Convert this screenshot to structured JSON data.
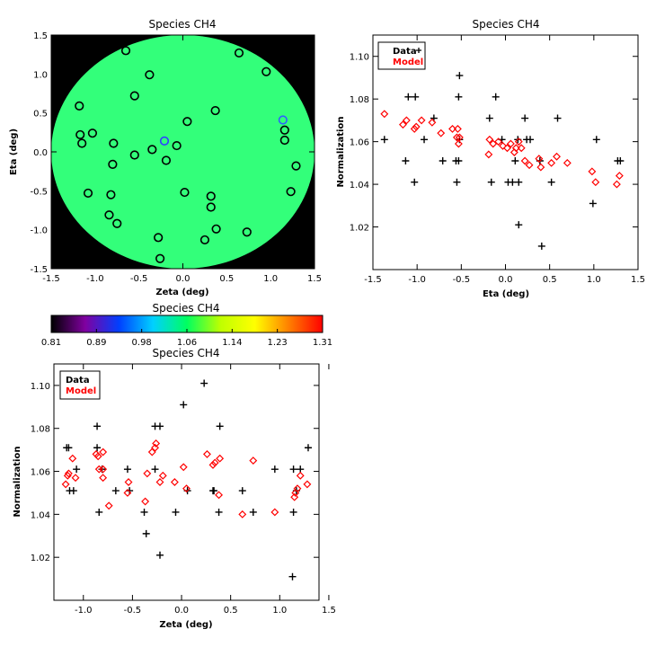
{
  "chart_data": [
    {
      "id": "map",
      "type": "scatter",
      "title": "Species CH4",
      "xlabel": "Zeta (deg)",
      "ylabel": "Eta (deg)",
      "xlim": [
        -1.5,
        1.5
      ],
      "ylim": [
        -1.5,
        1.5
      ],
      "xticks": [
        -1.5,
        -1.0,
        -0.5,
        0.0,
        0.5,
        1.0,
        1.5
      ],
      "yticks": [
        -1.5,
        -1.0,
        -0.5,
        0.0,
        0.5,
        1.0,
        1.5
      ],
      "xtick_labels": [
        "-1.5",
        "-1.0",
        "-0.5",
        "0.0",
        "0.5",
        "1.0",
        "1.5"
      ],
      "ytick_labels": [
        "-1.5",
        "-1.0",
        "-0.5",
        "0.0",
        "0.5",
        "1.0",
        "1.5"
      ],
      "background_color": "#000000",
      "field_color": "#33ff7a",
      "field_radius": 1.5,
      "points": [
        {
          "x": -0.65,
          "y": 1.3
        },
        {
          "x": -0.38,
          "y": 0.99
        },
        {
          "x": -0.55,
          "y": 0.72
        },
        {
          "x": -1.18,
          "y": 0.59
        },
        {
          "x": -1.17,
          "y": 0.22
        },
        {
          "x": -1.15,
          "y": 0.11
        },
        {
          "x": -1.03,
          "y": 0.24
        },
        {
          "x": -0.79,
          "y": 0.11
        },
        {
          "x": -0.35,
          "y": 0.03
        },
        {
          "x": -0.21,
          "y": 0.14,
          "color": "#3040ff"
        },
        {
          "x": -0.07,
          "y": 0.08
        },
        {
          "x": -0.55,
          "y": -0.04
        },
        {
          "x": -0.19,
          "y": -0.11
        },
        {
          "x": -0.8,
          "y": -0.16
        },
        {
          "x": -1.08,
          "y": -0.53
        },
        {
          "x": -0.82,
          "y": -0.55
        },
        {
          "x": -0.84,
          "y": -0.81
        },
        {
          "x": -0.75,
          "y": -0.92
        },
        {
          "x": -0.28,
          "y": -1.1
        },
        {
          "x": -0.26,
          "y": -1.37
        },
        {
          "x": 0.05,
          "y": 0.39
        },
        {
          "x": 0.37,
          "y": 0.53
        },
        {
          "x": 0.02,
          "y": -0.52
        },
        {
          "x": 0.32,
          "y": -0.57
        },
        {
          "x": 0.32,
          "y": -0.71
        },
        {
          "x": 0.38,
          "y": -0.99
        },
        {
          "x": 0.25,
          "y": -1.13
        },
        {
          "x": 0.64,
          "y": 1.27
        },
        {
          "x": 0.95,
          "y": 1.03
        },
        {
          "x": 0.73,
          "y": -1.03
        },
        {
          "x": 1.14,
          "y": 0.41,
          "color": "#3060ff"
        },
        {
          "x": 1.16,
          "y": 0.28
        },
        {
          "x": 1.16,
          "y": 0.15
        },
        {
          "x": 1.29,
          "y": -0.18
        },
        {
          "x": 1.23,
          "y": -0.51
        }
      ]
    },
    {
      "id": "eta",
      "type": "scatter",
      "title": "Species CH4",
      "xlabel": "Eta (deg)",
      "ylabel": "Normalization",
      "xlim": [
        -1.5,
        1.5
      ],
      "ylim": [
        1.0,
        1.11
      ],
      "xticks": [
        -1.5,
        -1.0,
        -0.5,
        0.0,
        0.5,
        1.0,
        1.5
      ],
      "yticks": [
        1.02,
        1.04,
        1.06,
        1.08,
        1.1
      ],
      "xtick_labels": [
        "-1.5",
        "-1.0",
        "-0.5",
        "0.0",
        "0.5",
        "1.0",
        "1.5"
      ],
      "ytick_labels": [
        "1.02",
        "1.04",
        "1.06",
        "1.08",
        "1.10"
      ],
      "legend": {
        "position": "top-left",
        "entries": [
          "Data",
          "Model"
        ]
      },
      "series": [
        {
          "name": "Data",
          "marker": "plus",
          "color": "#000000",
          "points": [
            {
              "x": 1.27,
              "y": 1.051
            },
            {
              "x": 1.3,
              "y": 1.051
            },
            {
              "x": 1.03,
              "y": 1.061
            },
            {
              "x": 0.99,
              "y": 1.031
            },
            {
              "x": 0.59,
              "y": 1.071
            },
            {
              "x": 0.52,
              "y": 1.041
            },
            {
              "x": 0.41,
              "y": 1.011
            },
            {
              "x": 0.39,
              "y": 1.051
            },
            {
              "x": 0.28,
              "y": 1.061
            },
            {
              "x": 0.24,
              "y": 1.061
            },
            {
              "x": 0.22,
              "y": 1.071
            },
            {
              "x": 0.15,
              "y": 1.041
            },
            {
              "x": 0.15,
              "y": 1.021
            },
            {
              "x": 0.14,
              "y": 1.061
            },
            {
              "x": 0.11,
              "y": 1.051
            },
            {
              "x": 0.08,
              "y": 1.041
            },
            {
              "x": 0.03,
              "y": 1.041
            },
            {
              "x": -0.04,
              "y": 1.061
            },
            {
              "x": -0.11,
              "y": 1.081
            },
            {
              "x": -0.16,
              "y": 1.041
            },
            {
              "x": -0.18,
              "y": 1.071
            },
            {
              "x": -0.52,
              "y": 1.091
            },
            {
              "x": -0.53,
              "y": 1.081
            },
            {
              "x": -0.52,
              "y": 1.061
            },
            {
              "x": -0.53,
              "y": 1.051
            },
            {
              "x": -0.56,
              "y": 1.051
            },
            {
              "x": -0.55,
              "y": 1.041
            },
            {
              "x": -0.71,
              "y": 1.051
            },
            {
              "x": -0.81,
              "y": 1.071
            },
            {
              "x": -0.92,
              "y": 1.061
            },
            {
              "x": -1.02,
              "y": 1.081
            },
            {
              "x": -1.03,
              "y": 1.041
            },
            {
              "x": -1.1,
              "y": 1.081
            },
            {
              "x": -1.13,
              "y": 1.051
            },
            {
              "x": -1.37,
              "y": 1.061
            }
          ]
        },
        {
          "name": "Model",
          "marker": "diamond",
          "color": "#ff0000",
          "points": [
            {
              "x": -1.37,
              "y": 1.073
            },
            {
              "x": -1.16,
              "y": 1.068
            },
            {
              "x": -1.12,
              "y": 1.07
            },
            {
              "x": -1.03,
              "y": 1.066
            },
            {
              "x": -1.01,
              "y": 1.067
            },
            {
              "x": -0.95,
              "y": 1.07
            },
            {
              "x": -0.83,
              "y": 1.069
            },
            {
              "x": -0.73,
              "y": 1.064
            },
            {
              "x": -0.6,
              "y": 1.066
            },
            {
              "x": -0.55,
              "y": 1.062
            },
            {
              "x": -0.54,
              "y": 1.066
            },
            {
              "x": -0.52,
              "y": 1.062
            },
            {
              "x": -0.53,
              "y": 1.059
            },
            {
              "x": -0.19,
              "y": 1.054
            },
            {
              "x": -0.18,
              "y": 1.061
            },
            {
              "x": -0.14,
              "y": 1.059
            },
            {
              "x": -0.08,
              "y": 1.06
            },
            {
              "x": -0.03,
              "y": 1.058
            },
            {
              "x": 0.02,
              "y": 1.057
            },
            {
              "x": 0.06,
              "y": 1.059
            },
            {
              "x": 0.1,
              "y": 1.055
            },
            {
              "x": 0.12,
              "y": 1.057
            },
            {
              "x": 0.15,
              "y": 1.06
            },
            {
              "x": 0.18,
              "y": 1.057
            },
            {
              "x": 0.22,
              "y": 1.051
            },
            {
              "x": 0.27,
              "y": 1.049
            },
            {
              "x": 0.38,
              "y": 1.052
            },
            {
              "x": 0.4,
              "y": 1.048
            },
            {
              "x": 0.52,
              "y": 1.05
            },
            {
              "x": 0.58,
              "y": 1.053
            },
            {
              "x": 0.7,
              "y": 1.05
            },
            {
              "x": 0.98,
              "y": 1.046
            },
            {
              "x": 1.02,
              "y": 1.041
            },
            {
              "x": 1.26,
              "y": 1.04
            },
            {
              "x": 1.29,
              "y": 1.044
            }
          ]
        }
      ]
    },
    {
      "id": "zeta",
      "type": "scatter",
      "title": "Species CH4",
      "xlabel": "Zeta (deg)",
      "ylabel": "Normalization",
      "xlim": [
        -1.3,
        1.4
      ],
      "ylim": [
        1.0,
        1.11
      ],
      "xticks": [
        -1.0,
        -0.5,
        0.0,
        0.5,
        1.0,
        1.5
      ],
      "yticks": [
        1.02,
        1.04,
        1.06,
        1.08,
        1.1
      ],
      "xtick_labels": [
        "-1.0",
        "-0.5",
        "0.0",
        "0.5",
        "1.0",
        "1.5"
      ],
      "ytick_labels": [
        "1.02",
        "1.04",
        "1.06",
        "1.08",
        "1.10"
      ],
      "legend": {
        "position": "top-left",
        "entries": [
          "Data",
          "Model"
        ]
      },
      "series": [
        {
          "name": "Data",
          "marker": "plus",
          "color": "#000000",
          "points": [
            {
              "x": -1.17,
              "y": 1.071
            },
            {
              "x": -1.14,
              "y": 1.051
            },
            {
              "x": -1.1,
              "y": 1.051
            },
            {
              "x": -1.07,
              "y": 1.061
            },
            {
              "x": -0.86,
              "y": 1.081
            },
            {
              "x": -0.86,
              "y": 1.071
            },
            {
              "x": -0.84,
              "y": 1.041
            },
            {
              "x": -0.81,
              "y": 1.061
            },
            {
              "x": -0.67,
              "y": 1.051
            },
            {
              "x": -0.55,
              "y": 1.061
            },
            {
              "x": -0.53,
              "y": 1.051
            },
            {
              "x": -0.38,
              "y": 1.041
            },
            {
              "x": -0.36,
              "y": 1.031
            },
            {
              "x": -0.27,
              "y": 1.081
            },
            {
              "x": -0.27,
              "y": 1.061
            },
            {
              "x": -0.22,
              "y": 1.081
            },
            {
              "x": -0.22,
              "y": 1.021
            },
            {
              "x": -0.06,
              "y": 1.041
            },
            {
              "x": 0.02,
              "y": 1.091
            },
            {
              "x": 0.06,
              "y": 1.051
            },
            {
              "x": 0.23,
              "y": 1.101
            },
            {
              "x": 0.32,
              "y": 1.051
            },
            {
              "x": 0.33,
              "y": 1.051
            },
            {
              "x": 0.38,
              "y": 1.041
            },
            {
              "x": 0.39,
              "y": 1.081
            },
            {
              "x": 0.62,
              "y": 1.051
            },
            {
              "x": 0.73,
              "y": 1.041
            },
            {
              "x": 0.95,
              "y": 1.061
            },
            {
              "x": 1.13,
              "y": 1.011
            },
            {
              "x": 1.14,
              "y": 1.061
            },
            {
              "x": 1.14,
              "y": 1.041
            },
            {
              "x": 1.17,
              "y": 1.051
            },
            {
              "x": 1.21,
              "y": 1.061
            },
            {
              "x": 1.29,
              "y": 1.071
            },
            {
              "x": -1.15,
              "y": 1.071
            }
          ]
        },
        {
          "name": "Model",
          "marker": "diamond",
          "color": "#ff0000",
          "points": [
            {
              "x": -1.18,
              "y": 1.054
            },
            {
              "x": -1.16,
              "y": 1.058
            },
            {
              "x": -1.15,
              "y": 1.059
            },
            {
              "x": -1.11,
              "y": 1.066
            },
            {
              "x": -1.08,
              "y": 1.057
            },
            {
              "x": -0.87,
              "y": 1.068
            },
            {
              "x": -0.85,
              "y": 1.067
            },
            {
              "x": -0.84,
              "y": 1.061
            },
            {
              "x": -0.8,
              "y": 1.069
            },
            {
              "x": -0.8,
              "y": 1.061
            },
            {
              "x": -0.8,
              "y": 1.057
            },
            {
              "x": -0.74,
              "y": 1.044
            },
            {
              "x": -0.55,
              "y": 1.05
            },
            {
              "x": -0.54,
              "y": 1.055
            },
            {
              "x": -0.37,
              "y": 1.046
            },
            {
              "x": -0.35,
              "y": 1.059
            },
            {
              "x": -0.3,
              "y": 1.069
            },
            {
              "x": -0.27,
              "y": 1.071
            },
            {
              "x": -0.26,
              "y": 1.073
            },
            {
              "x": -0.22,
              "y": 1.055
            },
            {
              "x": -0.19,
              "y": 1.058
            },
            {
              "x": -0.07,
              "y": 1.055
            },
            {
              "x": 0.02,
              "y": 1.062
            },
            {
              "x": 0.05,
              "y": 1.052
            },
            {
              "x": 0.26,
              "y": 1.068
            },
            {
              "x": 0.32,
              "y": 1.063
            },
            {
              "x": 0.34,
              "y": 1.064
            },
            {
              "x": 0.38,
              "y": 1.049
            },
            {
              "x": 0.39,
              "y": 1.066
            },
            {
              "x": 0.62,
              "y": 1.04
            },
            {
              "x": 0.73,
              "y": 1.065
            },
            {
              "x": 0.95,
              "y": 1.041
            },
            {
              "x": 1.15,
              "y": 1.048
            },
            {
              "x": 1.16,
              "y": 1.05
            },
            {
              "x": 1.18,
              "y": 1.052
            },
            {
              "x": 1.21,
              "y": 1.058
            },
            {
              "x": 1.28,
              "y": 1.054
            }
          ]
        }
      ]
    },
    {
      "id": "colorbar",
      "type": "heatmap",
      "title": "Species CH4",
      "range": [
        0.81,
        1.31
      ],
      "tick_labels": [
        "0.81",
        "0.89",
        "0.98",
        "1.06",
        "1.14",
        "1.23",
        "1.31"
      ],
      "colors": [
        "#000000",
        "#8000a0",
        "#0040ff",
        "#00d0ff",
        "#00ff60",
        "#c0ff00",
        "#ffff00",
        "#ff8000",
        "#ff0000"
      ]
    }
  ]
}
